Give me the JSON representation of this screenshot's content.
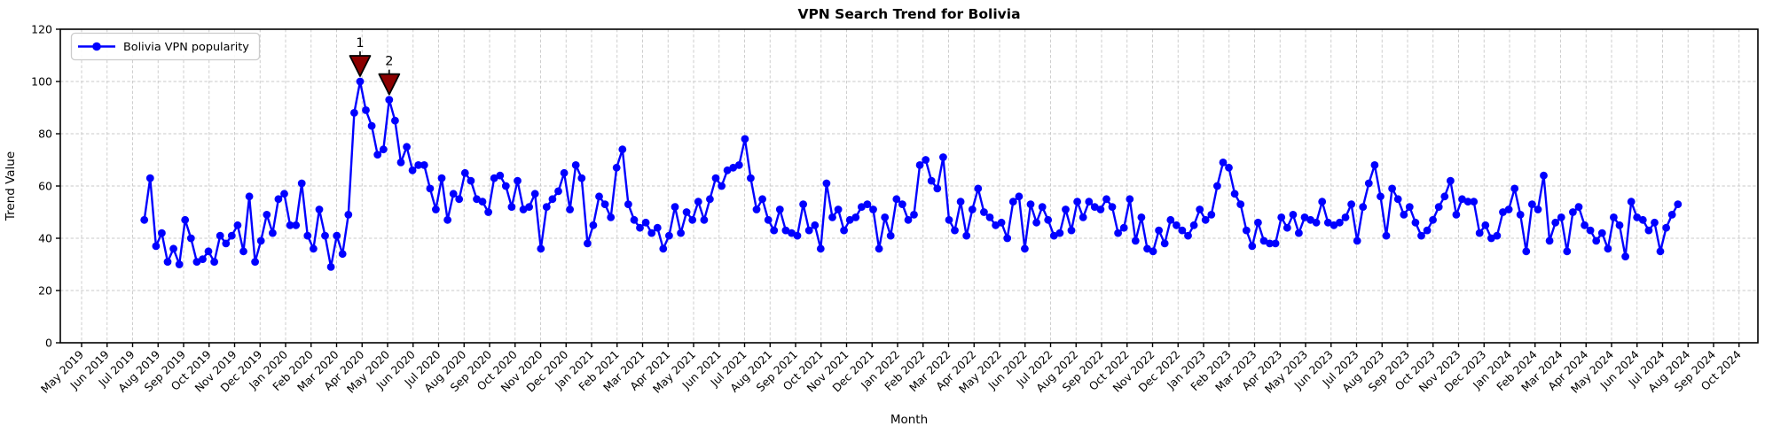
{
  "figure": {
    "title": "VPN Search Trend for Bolivia",
    "xlabel": "Month",
    "ylabel": "Trend Value",
    "legend": {
      "label": "Bolivia VPN popularity"
    }
  },
  "colors": {
    "line": "#0000ff",
    "marker": "#0000ff",
    "annotation": "#8b0000",
    "annotation_edge": "#000000",
    "grid": "#c9c9c9",
    "spine": "#000000",
    "legend_border": "#cccccc",
    "background": "#ffffff"
  },
  "chart_data": {
    "type": "line",
    "title": "VPN Search Trend for Bolivia",
    "xlabel": "Month",
    "ylabel": "Trend Value",
    "ylim": [
      0,
      120
    ],
    "yticks": [
      0,
      20,
      40,
      60,
      80,
      100,
      120
    ],
    "grid": true,
    "grid_style": "dashed",
    "legend_position": "upper left",
    "x_tick_labels": [
      "May 2019",
      "Jun 2019",
      "Jul 2019",
      "Aug 2019",
      "Sep 2019",
      "Oct 2019",
      "Nov 2019",
      "Dec 2019",
      "Jan 2020",
      "Feb 2020",
      "Mar 2020",
      "Apr 2020",
      "May 2020",
      "Jun 2020",
      "Jul 2020",
      "Aug 2020",
      "Sep 2020",
      "Oct 2020",
      "Nov 2020",
      "Dec 2020",
      "Jan 2021",
      "Feb 2021",
      "Mar 2021",
      "Apr 2021",
      "May 2021",
      "Jun 2021",
      "Jul 2021",
      "Aug 2021",
      "Sep 2021",
      "Oct 2021",
      "Nov 2021",
      "Dec 2021",
      "Jan 2022",
      "Feb 2022",
      "Mar 2022",
      "Apr 2022",
      "May 2022",
      "Jun 2022",
      "Jul 2022",
      "Aug 2022",
      "Sep 2022",
      "Oct 2022",
      "Nov 2022",
      "Dec 2022",
      "Jan 2023",
      "Feb 2023",
      "Mar 2023",
      "Apr 2023",
      "May 2023",
      "Jun 2023",
      "Jul 2023",
      "Aug 2023",
      "Sep 2023",
      "Oct 2023",
      "Nov 2023",
      "Dec 2023",
      "Jan 2024",
      "Feb 2024",
      "Mar 2024",
      "Apr 2024",
      "May 2024",
      "Jun 2024",
      "Jul 2024",
      "Aug 2024",
      "Sep 2024",
      "Oct 2024"
    ],
    "series": [
      {
        "name": "Bolivia VPN popularity",
        "color": "#0000ff",
        "marker": "circle",
        "cadence": "weekly",
        "start_month_offset": 2.46,
        "end_month_offset": 62.6,
        "values": [
          47,
          63,
          37,
          42,
          31,
          36,
          30,
          47,
          40,
          31,
          32,
          35,
          31,
          41,
          38,
          41,
          45,
          35,
          56,
          31,
          39,
          49,
          42,
          55,
          57,
          45,
          45,
          61,
          41,
          36,
          51,
          41,
          29,
          41,
          34,
          49,
          88,
          100,
          89,
          83,
          72,
          74,
          93,
          85,
          69,
          75,
          66,
          68,
          68,
          59,
          51,
          63,
          47,
          57,
          55,
          65,
          62,
          55,
          54,
          50,
          63,
          64,
          60,
          52,
          62,
          51,
          52,
          57,
          36,
          52,
          55,
          58,
          65,
          51,
          68,
          63,
          38,
          45,
          56,
          53,
          48,
          67,
          74,
          53,
          47,
          44,
          46,
          42,
          44,
          36,
          41,
          52,
          42,
          50,
          47,
          54,
          47,
          55,
          63,
          60,
          66,
          67,
          68,
          78,
          63,
          51,
          55,
          47,
          43,
          51,
          43,
          42,
          41,
          53,
          43,
          45,
          36,
          61,
          48,
          51,
          43,
          47,
          48,
          52,
          53,
          51,
          36,
          48,
          41,
          55,
          53,
          47,
          49,
          68,
          70,
          62,
          59,
          71,
          47,
          43,
          54,
          41,
          51,
          59,
          50,
          48,
          45,
          46,
          40,
          54,
          56,
          36,
          53,
          46,
          52,
          47,
          41,
          42,
          51,
          43,
          54,
          48,
          54,
          52,
          51,
          55,
          52,
          42,
          44,
          55,
          39,
          48,
          36,
          35,
          43,
          38,
          47,
          45,
          43,
          41,
          45,
          51,
          47,
          49,
          60,
          69,
          67,
          57,
          53,
          43,
          37,
          46,
          39,
          38,
          38,
          48,
          44,
          49,
          42,
          48,
          47,
          46,
          54,
          46,
          45,
          46,
          48,
          53,
          39,
          52,
          61,
          68,
          56,
          41,
          59,
          55,
          49,
          52,
          46,
          41,
          43,
          47,
          52,
          56,
          62,
          49,
          55,
          54,
          54,
          42,
          45,
          40,
          41,
          50,
          51,
          59,
          49,
          35,
          53,
          51,
          64,
          39,
          46,
          48,
          35,
          50,
          52,
          45,
          43,
          39,
          42,
          36,
          48,
          45,
          33,
          54,
          48,
          47,
          43,
          46,
          35,
          44,
          49,
          53
        ]
      }
    ],
    "annotations": [
      {
        "label": "1",
        "point_index": 37,
        "value": 100,
        "color": "#8b0000"
      },
      {
        "label": "2",
        "point_index": 42,
        "value": 93,
        "color": "#8b0000"
      }
    ]
  }
}
